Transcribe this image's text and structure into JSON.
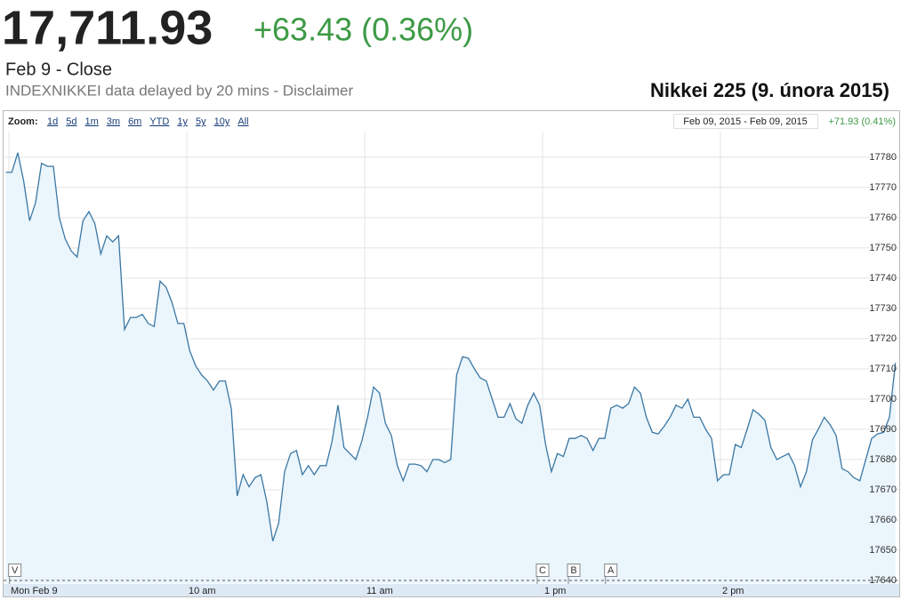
{
  "header": {
    "price": "17,711.93",
    "change": "+63.43 (0.36%)",
    "status": "Feb 9 - Close",
    "source": "INDEXNIKKEI data delayed by 20 mins - Disclaimer",
    "caption": "Nikkei 225 (9. února 2015)"
  },
  "toolbar": {
    "zoom_label": "Zoom:",
    "zoom_options": [
      "1d",
      "5d",
      "1m",
      "3m",
      "6m",
      "YTD",
      "1y",
      "5y",
      "10y",
      "All"
    ],
    "range": "Feb 09, 2015 - Feb 09, 2015",
    "range_change": "+71.93 (0.41%)"
  },
  "chart_data": {
    "type": "area",
    "x": [
      -1,
      1,
      3,
      5,
      7,
      9,
      11,
      13,
      15,
      17,
      19,
      21,
      23,
      25,
      27,
      29,
      31,
      33,
      35,
      37,
      39,
      41,
      43,
      45,
      47,
      49,
      51,
      53,
      55,
      57,
      59,
      61,
      63,
      65,
      67,
      69,
      71,
      73,
      75,
      77,
      79,
      81,
      83,
      85,
      87,
      89,
      91,
      93,
      95,
      97,
      99,
      101,
      103,
      105,
      107,
      109,
      111,
      113,
      115,
      117,
      119,
      121,
      123,
      125,
      127,
      129,
      131,
      133,
      135,
      137,
      139,
      141,
      143,
      145,
      147,
      149,
      151,
      153,
      155,
      157,
      159,
      161,
      163,
      165,
      167,
      169,
      171,
      173,
      175,
      177,
      179,
      181,
      183,
      185,
      187,
      189,
      191,
      193,
      195,
      197,
      199,
      201,
      203,
      205,
      207,
      209,
      211,
      213,
      215,
      217,
      219,
      221,
      223,
      225,
      227,
      229,
      231,
      233,
      235,
      237,
      239,
      241,
      243,
      245,
      247,
      249,
      251,
      253,
      255,
      257,
      259,
      261,
      263,
      265,
      267,
      269,
      271,
      273,
      275,
      277,
      279,
      281,
      283,
      285,
      287,
      289,
      291,
      293,
      295,
      297,
      299
    ],
    "values": [
      17775,
      17775,
      17781.5,
      17772,
      17759,
      17765,
      17778,
      17777,
      17777,
      17760,
      17753,
      17749,
      17747,
      17759,
      17762,
      17758,
      17748,
      17754,
      17752,
      17754,
      17723,
      17727,
      17727,
      17728,
      17725,
      17724,
      17739,
      17737,
      17732,
      17725,
      17725,
      17716,
      17711,
      17708,
      17706,
      17703,
      17706,
      17706,
      17697,
      17668,
      17675,
      17671,
      17674,
      17675,
      17666,
      17653,
      17659,
      17676,
      17682,
      17683,
      17675,
      17678,
      17675,
      17678,
      17678,
      17686,
      17698,
      17684,
      17682,
      17680,
      17686,
      17694,
      17704,
      17702,
      17692,
      17688,
      17678,
      17673,
      17678.5,
      17678.5,
      17678,
      17676,
      17680,
      17680,
      17679,
      17680,
      17708,
      17714,
      17713.5,
      17710,
      17707,
      17706,
      17700,
      17694,
      17694,
      17698.5,
      17693.5,
      17692,
      17698,
      17702,
      17698,
      17685,
      17676,
      17682,
      17681,
      17687,
      17687,
      17688,
      17687,
      17683,
      17687,
      17687,
      17697,
      17698,
      17697,
      17698.5,
      17704,
      17702,
      17694,
      17689,
      17688.5,
      17691,
      17694,
      17698,
      17697,
      17700,
      17694,
      17694,
      17690,
      17687,
      17673,
      17675,
      17675,
      17685,
      17684,
      17690,
      17696.5,
      17695,
      17693,
      17684,
      17680,
      17681,
      17682,
      17678,
      17671,
      17676,
      17686.5,
      17690,
      17694,
      17691.5,
      17688,
      17677,
      17676,
      17674,
      17673,
      17680,
      17687,
      17688.5,
      17689,
      17694,
      17712
    ],
    "color": "#3b77a3",
    "fill_color": "#eaf5fc",
    "xlim": [
      -1.2,
      300.8
    ],
    "xticks": [
      {
        "value": 0,
        "label": "Mon Feb 9"
      },
      {
        "value": 60,
        "label": "10 am"
      },
      {
        "value": 120,
        "label": "11 am"
      },
      {
        "value": 180,
        "label": "1 pm"
      },
      {
        "value": 240,
        "label": "2 pm"
      }
    ],
    "ylim": [
      17639,
      17788.5
    ],
    "yticks": [
      17640,
      17650,
      17660,
      17670,
      17680,
      17690,
      17700,
      17710,
      17720,
      17730,
      17740,
      17750,
      17760,
      17770,
      17780
    ],
    "grid": true,
    "flags": [
      {
        "label": "V",
        "x": 2
      },
      {
        "label": "C",
        "x": 180
      },
      {
        "label": "B",
        "x": 190.5
      },
      {
        "label": "A",
        "x": 203
      }
    ]
  }
}
